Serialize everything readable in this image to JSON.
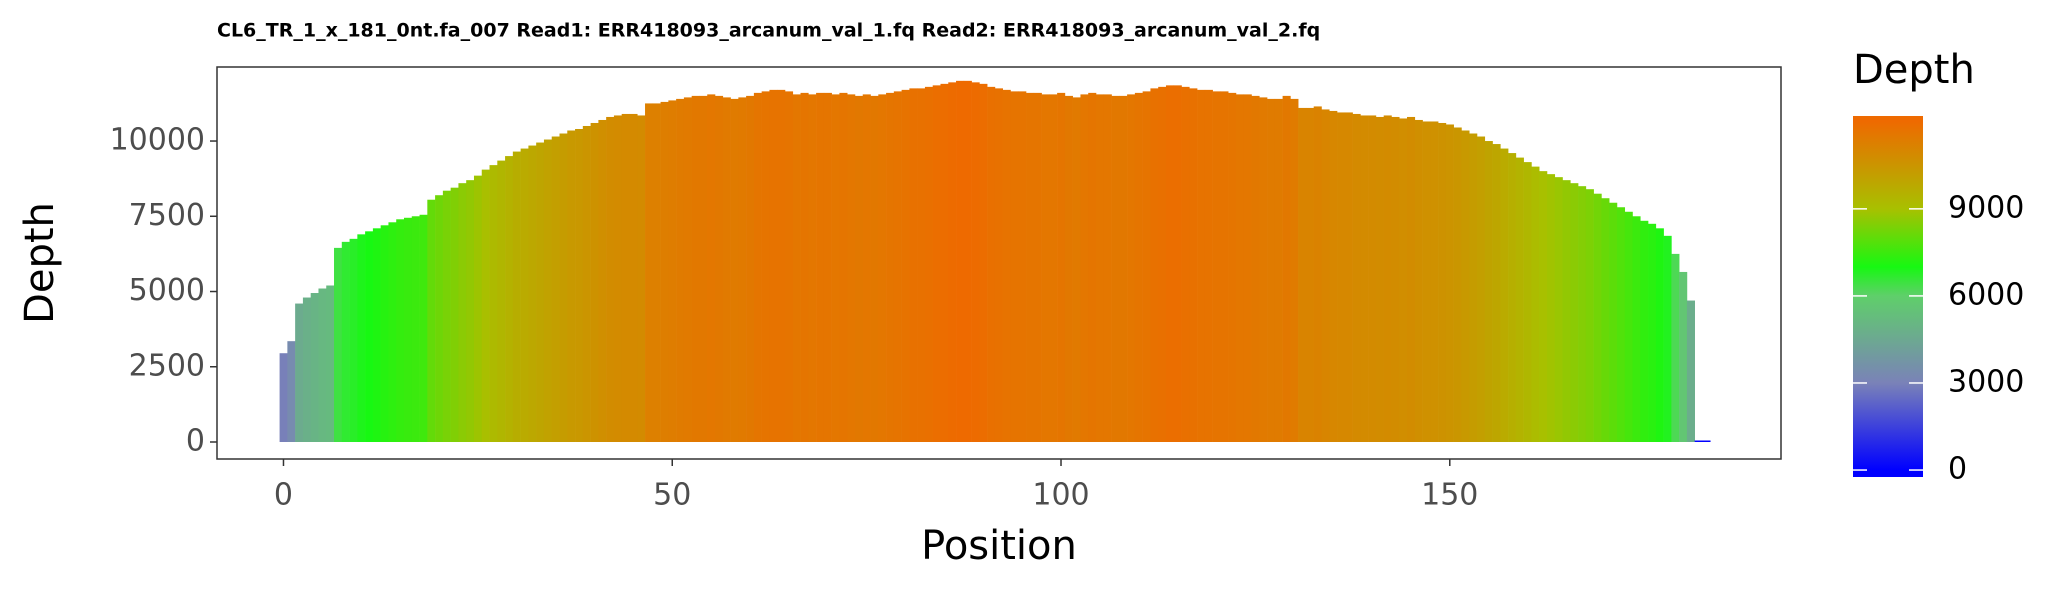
{
  "chart_data": {
    "type": "bar",
    "title": "CL6_TR_1_x_181_0nt.fa_007 Read1: ERR418093_arcanum_val_1.fq Read2: ERR418093_arcanum_val_2.fq",
    "x_label": "Position",
    "y_label": "Depth",
    "legend_title": "Depth",
    "x": [
      0,
      1,
      2,
      3,
      4,
      5,
      6,
      7,
      8,
      9,
      10,
      11,
      12,
      13,
      14,
      15,
      16,
      17,
      18,
      19,
      20,
      21,
      22,
      23,
      24,
      25,
      26,
      27,
      28,
      29,
      30,
      31,
      32,
      33,
      34,
      35,
      36,
      37,
      38,
      39,
      40,
      41,
      42,
      43,
      44,
      45,
      46,
      47,
      48,
      49,
      50,
      51,
      52,
      53,
      54,
      55,
      56,
      57,
      58,
      59,
      60,
      61,
      62,
      63,
      64,
      65,
      66,
      67,
      68,
      69,
      70,
      71,
      72,
      73,
      74,
      75,
      76,
      77,
      78,
      79,
      80,
      81,
      82,
      83,
      84,
      85,
      86,
      87,
      88,
      89,
      90,
      91,
      92,
      93,
      94,
      95,
      96,
      97,
      98,
      99,
      100,
      101,
      102,
      103,
      104,
      105,
      106,
      107,
      108,
      109,
      110,
      111,
      112,
      113,
      114,
      115,
      116,
      117,
      118,
      119,
      120,
      121,
      122,
      123,
      124,
      125,
      126,
      127,
      128,
      129,
      130,
      131,
      132,
      133,
      134,
      135,
      136,
      137,
      138,
      139,
      140,
      141,
      142,
      143,
      144,
      145,
      146,
      147,
      148,
      149,
      150,
      151,
      152,
      153,
      154,
      155,
      156,
      157,
      158,
      159,
      160,
      161,
      162,
      163,
      164,
      165,
      166,
      167,
      168,
      169,
      170,
      171,
      172,
      173,
      174,
      175,
      176,
      177,
      178,
      179,
      180,
      181,
      182,
      183
    ],
    "values": [
      2950,
      3350,
      4600,
      4800,
      4950,
      5100,
      5200,
      6450,
      6650,
      6750,
      6900,
      7000,
      7100,
      7200,
      7300,
      7400,
      7450,
      7500,
      7550,
      8050,
      8200,
      8350,
      8450,
      8600,
      8700,
      8850,
      9050,
      9200,
      9350,
      9500,
      9650,
      9750,
      9850,
      9950,
      10050,
      10150,
      10250,
      10350,
      10400,
      10500,
      10600,
      10700,
      10800,
      10850,
      10900,
      10900,
      10850,
      11250,
      11250,
      11300,
      11350,
      11400,
      11450,
      11500,
      11500,
      11550,
      11500,
      11450,
      11400,
      11450,
      11500,
      11600,
      11650,
      11700,
      11700,
      11650,
      11550,
      11600,
      11550,
      11600,
      11600,
      11550,
      11600,
      11550,
      11500,
      11550,
      11500,
      11550,
      11600,
      11650,
      11700,
      11750,
      11750,
      11800,
      11850,
      11900,
      11950,
      12000,
      12000,
      11950,
      11900,
      11800,
      11750,
      11700,
      11650,
      11650,
      11600,
      11600,
      11550,
      11550,
      11600,
      11500,
      11450,
      11550,
      11600,
      11550,
      11550,
      11500,
      11500,
      11550,
      11600,
      11650,
      11750,
      11800,
      11850,
      11850,
      11800,
      11750,
      11700,
      11700,
      11650,
      11650,
      11600,
      11550,
      11550,
      11500,
      11450,
      11400,
      11400,
      11500,
      11400,
      11100,
      11100,
      11150,
      11050,
      11000,
      10950,
      10950,
      10900,
      10850,
      10850,
      10800,
      10850,
      10800,
      10750,
      10800,
      10700,
      10650,
      10650,
      10600,
      10550,
      10450,
      10350,
      10250,
      10150,
      10000,
      9900,
      9750,
      9600,
      9450,
      9300,
      9150,
      9000,
      8900,
      8800,
      8700,
      8600,
      8500,
      8400,
      8250,
      8100,
      7950,
      7800,
      7650,
      7500,
      7350,
      7250,
      7100,
      6850,
      6250,
      5650,
      4700,
      50,
      50
    ],
    "xlim": [
      -8.55,
      192.6
    ],
    "ylim": [
      -565,
      12460
    ],
    "xticks": [
      0,
      50,
      100,
      150
    ],
    "yticks": [
      0,
      2500,
      5000,
      7500,
      10000
    ],
    "grid": false,
    "colorscale": [
      [
        0,
        "#0000ff"
      ],
      [
        3000,
        "#7a82b8"
      ],
      [
        6000,
        "#5fcf6a"
      ],
      [
        7000,
        "#17f812"
      ],
      [
        9000,
        "#a8c000"
      ],
      [
        12000,
        "#ee6a00"
      ]
    ],
    "colorbar_lim": [
      -240,
      12200
    ],
    "colorbar_ticks": [
      0,
      3000,
      6000,
      9000
    ]
  }
}
